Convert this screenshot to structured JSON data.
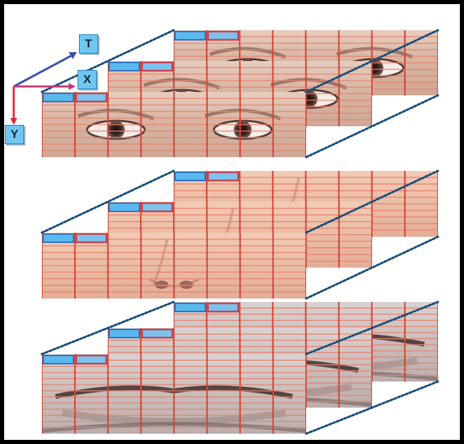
{
  "axes": [
    {
      "key": "t",
      "label": "T"
    },
    {
      "key": "x",
      "label": "X"
    },
    {
      "key": "y",
      "label": "Y"
    }
  ],
  "stacks": [
    {
      "name": "eyes",
      "layers": 3,
      "feature": "eyes"
    },
    {
      "name": "nose",
      "layers": 3,
      "feature": "nose"
    },
    {
      "name": "mouth",
      "layers": 3,
      "feature": "mouth"
    }
  ],
  "colors": {
    "grid_line": "#d2473a",
    "grid_line_light": "#e8836f",
    "cell_blue": "#5ab8ee",
    "cell_blue_border": "#2f6fbf",
    "cell_red": "#c9404a",
    "cell_red_fill": "#7cc3f0",
    "dotted_edge": "#1b4f7a",
    "arrow_t": "#3a4fb0",
    "arrow_x": "#c23878",
    "arrow_y": "#e0283a",
    "skin_eyes": "#d9b8a8",
    "skin_nose": "#eabaa4",
    "skin_mouth": "#cdc2c0"
  }
}
